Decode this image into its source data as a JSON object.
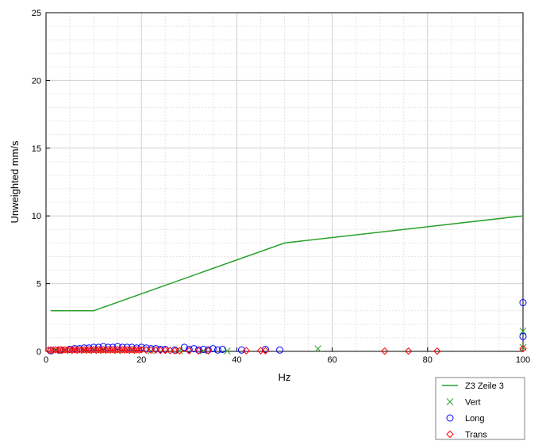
{
  "chart_data": {
    "type": "line",
    "xlabel": "Hz",
    "ylabel": "Unweighted mm/s",
    "xlim": [
      0,
      100
    ],
    "ylim": [
      0,
      25
    ],
    "x_ticks": [
      0,
      20,
      40,
      60,
      80,
      100
    ],
    "y_ticks": [
      0,
      5,
      10,
      15,
      20,
      25
    ],
    "x_minor_step": 5,
    "y_minor_step": 1,
    "grid": true,
    "legend_position": "bottom-right-outside",
    "series": [
      {
        "name": "Z3 Zeile 3",
        "type": "line",
        "color": "#2ca02c",
        "x": [
          1,
          10,
          50,
          100
        ],
        "y": [
          3,
          3,
          8,
          10
        ]
      },
      {
        "name": "Vert",
        "type": "scatter",
        "marker": "x",
        "color": "#2ca02c",
        "x": [
          2,
          4,
          6,
          8,
          10,
          12,
          15,
          18,
          22,
          28,
          33,
          38,
          57,
          100,
          100
        ],
        "y": [
          0.05,
          0.06,
          0.05,
          0.07,
          0.06,
          0.08,
          0.06,
          0.05,
          0.04,
          0.05,
          0.04,
          0.03,
          0.2,
          1.5,
          0.3
        ]
      },
      {
        "name": "Long",
        "type": "scatter",
        "marker": "o",
        "color": "#0000ff",
        "x": [
          1,
          3,
          5,
          6,
          7,
          8,
          9,
          10,
          11,
          12,
          13,
          14,
          15,
          16,
          17,
          18,
          19,
          20,
          21,
          22,
          23,
          24,
          25,
          27,
          29,
          30,
          31,
          32,
          33,
          34,
          35,
          36,
          37,
          41,
          46,
          49,
          100,
          100
        ],
        "y": [
          0.05,
          0.1,
          0.15,
          0.2,
          0.2,
          0.25,
          0.25,
          0.3,
          0.3,
          0.35,
          0.3,
          0.3,
          0.35,
          0.3,
          0.3,
          0.3,
          0.25,
          0.3,
          0.25,
          0.2,
          0.2,
          0.15,
          0.15,
          0.1,
          0.3,
          0.15,
          0.2,
          0.1,
          0.15,
          0.1,
          0.2,
          0.1,
          0.15,
          0.1,
          0.15,
          0.1,
          3.6,
          1.1
        ]
      },
      {
        "name": "Trans",
        "type": "scatter",
        "marker": "diamond",
        "color": "#ff0000",
        "x": [
          0.5,
          1,
          1.5,
          2,
          2.5,
          3,
          3.5,
          4,
          4.5,
          5,
          5.5,
          6,
          6.5,
          7,
          7.5,
          8,
          8.5,
          9,
          9.5,
          10,
          10.5,
          11,
          11.5,
          12,
          12.5,
          13,
          13.5,
          14,
          14.5,
          15,
          15.5,
          16,
          16.5,
          17,
          17.5,
          18,
          18.5,
          19,
          19.5,
          20,
          21,
          22,
          23,
          24,
          25,
          26,
          27,
          28,
          30,
          32,
          34,
          42,
          45,
          46,
          71,
          76,
          82,
          100
        ],
        "y": [
          0.1,
          0.1,
          0.1,
          0.12,
          0.1,
          0.12,
          0.1,
          0.12,
          0.1,
          0.12,
          0.1,
          0.12,
          0.1,
          0.12,
          0.1,
          0.12,
          0.1,
          0.12,
          0.1,
          0.12,
          0.1,
          0.12,
          0.1,
          0.12,
          0.1,
          0.12,
          0.1,
          0.12,
          0.1,
          0.12,
          0.1,
          0.12,
          0.1,
          0.12,
          0.1,
          0.12,
          0.1,
          0.12,
          0.1,
          0.12,
          0.1,
          0.1,
          0.1,
          0.08,
          0.08,
          0.06,
          0.05,
          0.05,
          0.05,
          0.05,
          0.05,
          0.05,
          0.05,
          0.05,
          0.02,
          0.02,
          0.02,
          0.2
        ]
      }
    ]
  }
}
